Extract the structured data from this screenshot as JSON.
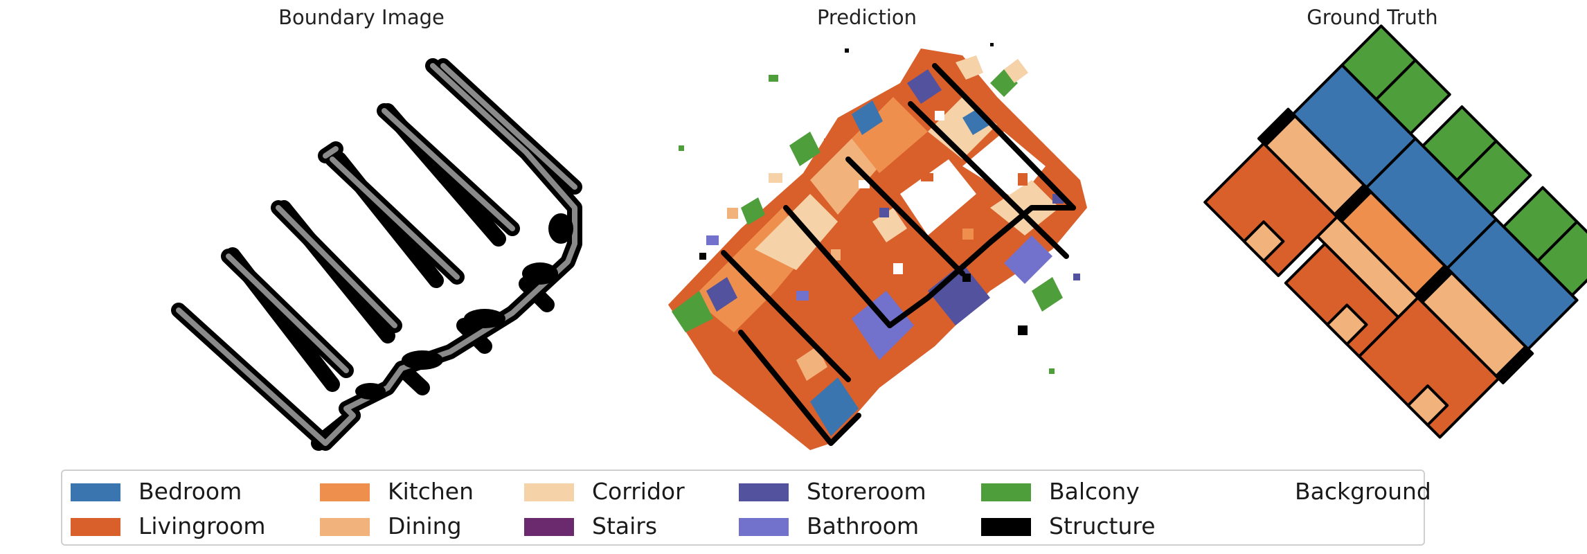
{
  "panels": [
    {
      "title": "Boundary Image"
    },
    {
      "title": "Prediction"
    },
    {
      "title": "Ground Truth"
    }
  ],
  "legend": [
    {
      "label": "Bedroom",
      "color": "#3a75b0"
    },
    {
      "label": "Livingroom",
      "color": "#d95f2b"
    },
    {
      "label": "Kitchen",
      "color": "#ef8f4e"
    },
    {
      "label": "Dining",
      "color": "#f2b27c"
    },
    {
      "label": "Corridor",
      "color": "#f6d2a9"
    },
    {
      "label": "Stairs",
      "color": "#6b2a6e"
    },
    {
      "label": "Storeroom",
      "color": "#53529f"
    },
    {
      "label": "Bathroom",
      "color": "#7271cb"
    },
    {
      "label": "Balcony",
      "color": "#4f9e3c"
    },
    {
      "label": "Structure",
      "color": "#000000"
    },
    {
      "label": "Background",
      "color": "#ffffff"
    }
  ]
}
